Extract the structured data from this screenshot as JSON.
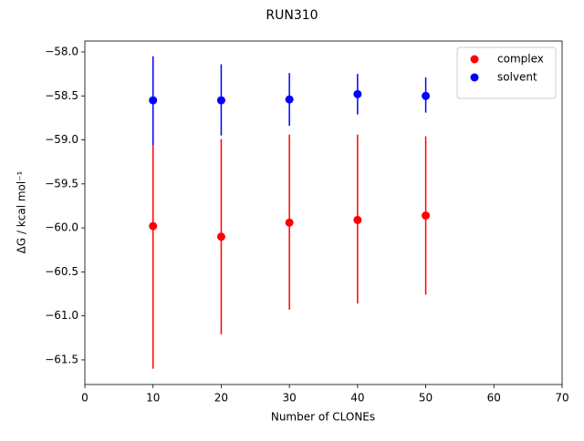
{
  "chart_data": {
    "type": "errorbar-scatter",
    "title": "RUN310",
    "x_label": "Number of CLONEs",
    "y_label": "ΔG / kcal mol⁻¹",
    "x": [
      10,
      20,
      30,
      40,
      50
    ],
    "series": [
      {
        "name": "complex",
        "color": "#ff0000",
        "values": [
          -59.98,
          -60.1,
          -59.94,
          -59.91,
          -59.86
        ],
        "lower": [
          -61.6,
          -61.21,
          -60.93,
          -60.86,
          -60.76
        ],
        "upper": [
          -59.06,
          -58.99,
          -58.94,
          -58.94,
          -58.96
        ]
      },
      {
        "name": "solvent",
        "color": "#0000ff",
        "values": [
          -58.55,
          -58.55,
          -58.54,
          -58.48,
          -58.5
        ],
        "lower": [
          -59.06,
          -58.95,
          -58.84,
          -58.71,
          -58.69
        ],
        "upper": [
          -58.05,
          -58.14,
          -58.24,
          -58.25,
          -58.29
        ]
      }
    ],
    "xlim": [
      0,
      70
    ],
    "xticks": [
      0,
      10,
      20,
      30,
      40,
      50,
      60,
      70
    ],
    "ylim": [
      -61.78,
      -57.876
    ],
    "yticks": [
      {
        "value": -61.5,
        "label": "−61.5"
      },
      {
        "value": -61.0,
        "label": "−61.0"
      },
      {
        "value": -60.5,
        "label": "−60.5"
      },
      {
        "value": -60.0,
        "label": "−60.0"
      },
      {
        "value": -59.5,
        "label": "−59.5"
      },
      {
        "value": -59.0,
        "label": "−59.0"
      },
      {
        "value": -58.5,
        "label": "−58.5"
      },
      {
        "value": -58.0,
        "label": "−58.0"
      }
    ],
    "legend": "upper right",
    "grid": false
  }
}
